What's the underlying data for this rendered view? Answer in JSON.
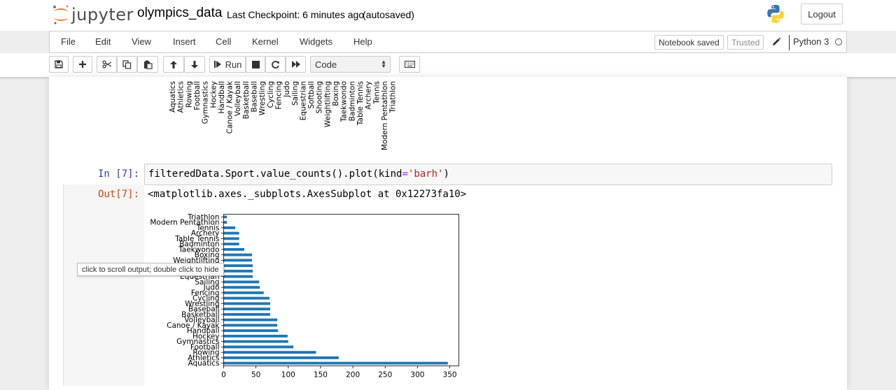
{
  "header": {
    "logo_text": "jupyter",
    "notebook_name": "olympics_data",
    "checkpoint": "Last Checkpoint: 6 minutes ago",
    "autosave": "(autosaved)",
    "logout_label": "Logout"
  },
  "menubar": {
    "items": [
      "File",
      "Edit",
      "View",
      "Insert",
      "Cell",
      "Kernel",
      "Widgets",
      "Help"
    ],
    "notebook_saved": "Notebook saved",
    "trusted": "Trusted",
    "kernel_name": "Python 3"
  },
  "toolbar": {
    "run_label": "Run",
    "cell_type": "Code"
  },
  "previous_output": {
    "tick_labels": [
      "Aquatics",
      "Athletics",
      "Rowing",
      "Football",
      "Gymnastics",
      "Hockey",
      "Handball",
      "Canoe / Kayak",
      "Volleyball",
      "Basketball",
      "Baseball",
      "Wrestling",
      "Cycling",
      "Fencing",
      "Judo",
      "Sailing",
      "Equestrian",
      "Softball",
      "Shooting",
      "Weightlifting",
      "Boxing",
      "Taekwondo",
      "Badminton",
      "Table Tennis",
      "Archery",
      "Tennis",
      "Modern Pentathlon",
      "Triathlon"
    ]
  },
  "cell": {
    "in_prompt": "In [7]:",
    "code_tokens": [
      {
        "text": "filteredData.Sport.value_counts().plot(",
        "kind": "default"
      },
      {
        "text": "kind",
        "kind": "default"
      },
      {
        "text": "=",
        "kind": "op"
      },
      {
        "text": "'barh'",
        "kind": "str"
      },
      {
        "text": ")",
        "kind": "default"
      }
    ],
    "out_prompt": "Out[7]:",
    "out_text": "<matplotlib.axes._subplots.AxesSubplot at 0x12273fa10>"
  },
  "tooltip": "click to scroll output; double click to hide",
  "chart_data": {
    "type": "bar",
    "orientation": "horizontal",
    "categories": [
      "Aquatics",
      "Athletics",
      "Rowing",
      "Football",
      "Gymnastics",
      "Hockey",
      "Handball",
      "Canoe / Kayak",
      "Volleyball",
      "Basketball",
      "Baseball",
      "Wrestling",
      "Cycling",
      "Fencing",
      "Judo",
      "Sailing",
      "Equestrian",
      "Softball",
      "Shooting",
      "Weightlifting",
      "Boxing",
      "Taekwondo",
      "Badminton",
      "Table Tennis",
      "Archery",
      "Tennis",
      "Modern Pentathlon",
      "Triathlon"
    ],
    "values": [
      347,
      178,
      143,
      108,
      100,
      99,
      84,
      83,
      83,
      72,
      72,
      72,
      71,
      62,
      56,
      55,
      45,
      45,
      45,
      44,
      44,
      32,
      24,
      24,
      24,
      18,
      5,
      5
    ],
    "xticks": [
      0,
      50,
      100,
      150,
      200,
      250,
      300,
      350
    ],
    "xlim": [
      0,
      364
    ],
    "color": "#1f77b4",
    "grid": false
  },
  "colors": {
    "bar": "#1f77b4",
    "in_prompt": "#303f9f",
    "out_prompt": "#d84315",
    "jupyter_orange": "#f37726"
  }
}
